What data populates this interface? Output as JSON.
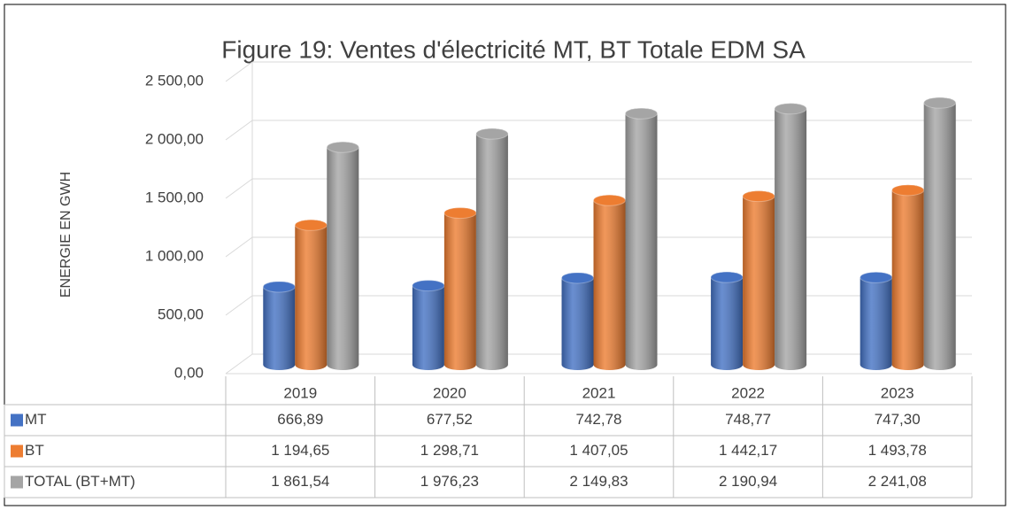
{
  "chart_data": {
    "type": "bar3d",
    "title": "Figure 19: Ventes d'électricité MT, BT Totale EDM SA",
    "y_label": "ENERGIE EN GWH",
    "categories": [
      "2019",
      "2020",
      "2021",
      "2022",
      "2023"
    ],
    "series": [
      {
        "name": "MT",
        "color": "#4472c4",
        "values": [
          666.89,
          677.52,
          742.78,
          748.77,
          747.3
        ],
        "value_labels": [
          "666,89",
          "677,52",
          "742,78",
          "748,77",
          "747,30"
        ]
      },
      {
        "name": "BT",
        "color": "#ed7d31",
        "values": [
          1194.65,
          1298.71,
          1407.05,
          1442.17,
          1493.78
        ],
        "value_labels": [
          "1 194,65",
          "1 298,71",
          "1 407,05",
          "1 442,17",
          "1 493,78"
        ]
      },
      {
        "name": "TOTAL (BT+MT)",
        "color": "#a5a5a5",
        "values": [
          1861.54,
          1976.23,
          2149.83,
          2190.94,
          2241.08
        ],
        "value_labels": [
          "1 861,54",
          "1 976,23",
          "2 149,83",
          "2 190,94",
          "2 241,08"
        ]
      }
    ],
    "ylim": [
      0,
      2500
    ],
    "yticks": [
      {
        "value": 0,
        "label": "0,00"
      },
      {
        "value": 500,
        "label": "500,00"
      },
      {
        "value": 1000,
        "label": "1 000,00"
      },
      {
        "value": 1500,
        "label": "1 500,00"
      },
      {
        "value": 2000,
        "label": "2 000,00"
      },
      {
        "value": 2500,
        "label": "2 500,00"
      }
    ],
    "grid": true
  }
}
